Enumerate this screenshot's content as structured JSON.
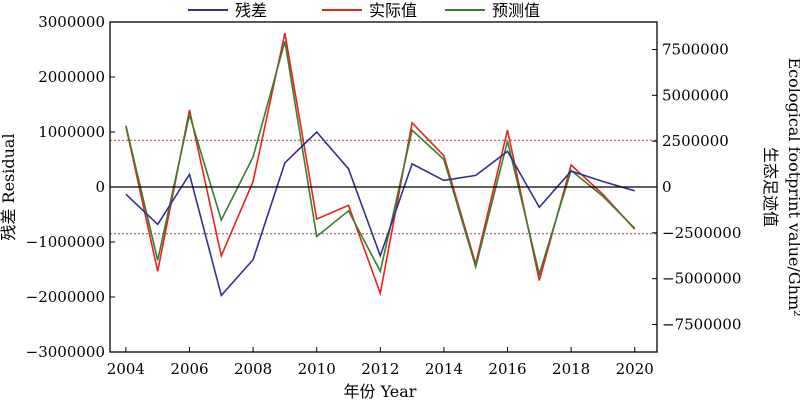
{
  "chart_data": {
    "type": "line",
    "x": [
      2004,
      2005,
      2006,
      2007,
      2008,
      2009,
      2010,
      2011,
      2012,
      2013,
      2014,
      2015,
      2016,
      2017,
      2018,
      2019,
      2020
    ],
    "xlabel": "年份 Year",
    "ylabel_left": "残差 Residual",
    "ylabel_right_cn": "生态足迹值",
    "ylabel_right_en": "Ecological footprint value/Ghm²",
    "xlim": [
      2003.5,
      2020.7
    ],
    "xticks": [
      2004,
      2006,
      2008,
      2010,
      2012,
      2014,
      2016,
      2018,
      2020
    ],
    "xtick_labels": [
      "2004",
      "2006",
      "2008",
      "2010",
      "2012",
      "2014",
      "2016",
      "2018",
      "2020"
    ],
    "ylim_left": [
      -3000000,
      3000000
    ],
    "yticks_left": [
      -3000000,
      -2000000,
      -1000000,
      0,
      1000000,
      2000000,
      3000000
    ],
    "ytick_labels_left": [
      "−3000000",
      "−2000000",
      "−1000000",
      "0",
      "1000000",
      "2000000",
      "3000000"
    ],
    "ylim_right": [
      -9000000,
      9000000
    ],
    "yticks_right": [
      -7500000,
      -5000000,
      -2500000,
      0,
      2500000,
      5000000,
      7500000
    ],
    "ytick_labels_right": [
      "−7500000",
      "−5000000",
      "−2500000",
      "0",
      "2500000",
      "5000000",
      "7500000"
    ],
    "reference_lines_left": [
      850000,
      -850000
    ],
    "legend_position": "top-center",
    "series": [
      {
        "name": "残差",
        "axis": "left",
        "color": "#2e3192",
        "values": [
          -130000,
          -680000,
          230000,
          -1970000,
          -1320000,
          440000,
          1000000,
          330000,
          -1250000,
          420000,
          120000,
          210000,
          650000,
          -370000,
          290000,
          100000,
          -70000
        ]
      },
      {
        "name": "实际值",
        "axis": "right",
        "color": "#e8231f",
        "values": [
          3300000,
          -4600000,
          4200000,
          -3750000,
          300000,
          8400000,
          -1750000,
          -1000000,
          -5800000,
          3500000,
          1700000,
          -4200000,
          3100000,
          -5100000,
          1200000,
          -400000,
          -2300000
        ]
      },
      {
        "name": "预测值",
        "axis": "right",
        "color": "#3a7d2e",
        "values": [
          3350000,
          -4000000,
          3950000,
          -1800000,
          1650000,
          7950000,
          -2700000,
          -1300000,
          -4600000,
          3100000,
          1500000,
          -4350000,
          2500000,
          -4750000,
          900000,
          -500000,
          -2250000
        ]
      }
    ]
  }
}
